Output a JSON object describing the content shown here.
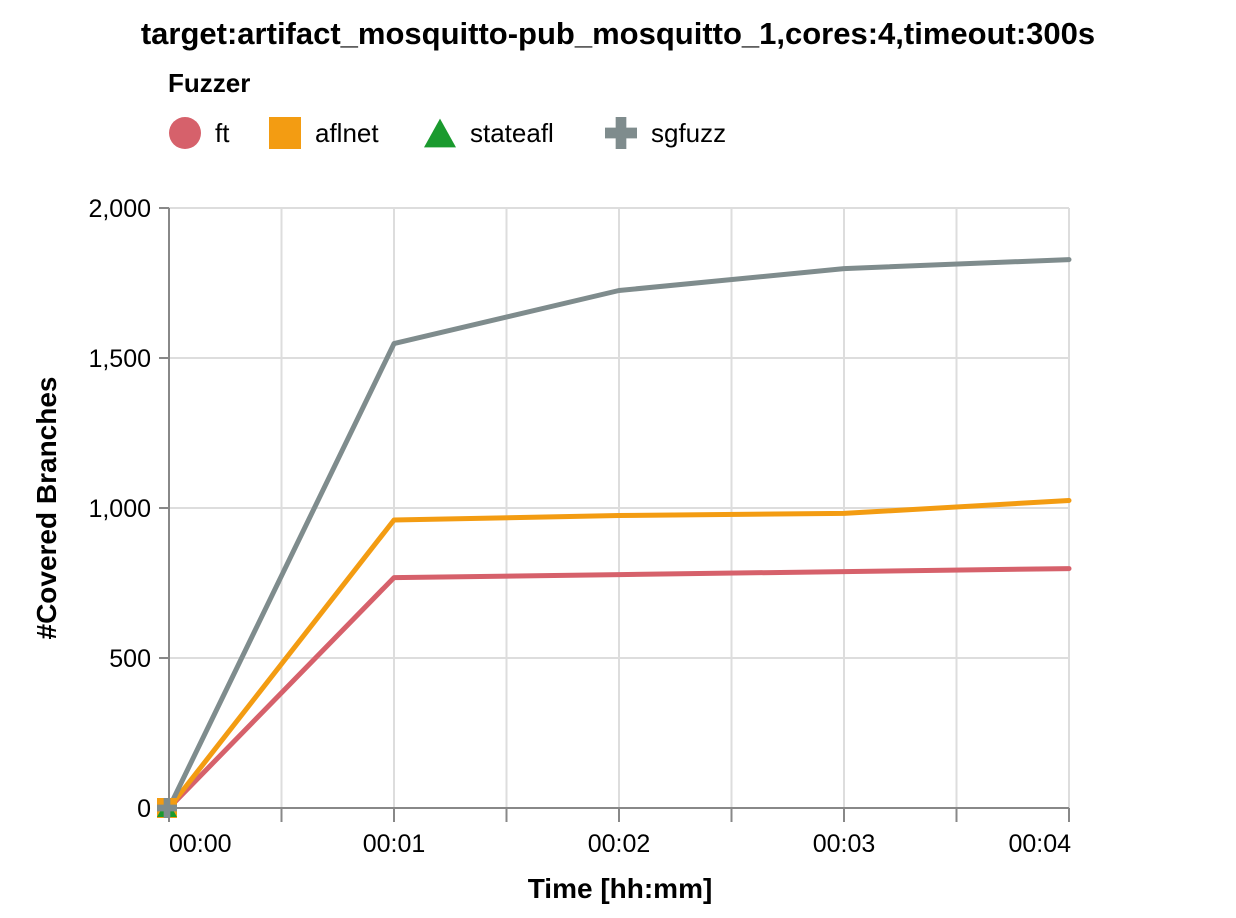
{
  "chart_data": {
    "type": "line",
    "title": "target:artifact_mosquitto-pub_mosquitto_1,cores:4,timeout:300s",
    "legend_title": "Fuzzer",
    "legend_position": "top-left",
    "xlabel": "Time [hh:mm]",
    "ylabel": "#Covered Branches",
    "xlim_minutes": [
      0,
      4
    ],
    "ylim": [
      0,
      2000
    ],
    "grid": true,
    "x_ticks": [
      "00:00",
      "00:01",
      "00:02",
      "00:03",
      "00:04"
    ],
    "y_ticks": [
      "0",
      "500",
      "1,000",
      "1,500",
      "2,000"
    ],
    "series": [
      {
        "name": "ft",
        "color": "#d6616b",
        "marker": "circle",
        "x": [
          "00:00",
          "00:01",
          "00:02",
          "00:03",
          "00:04"
        ],
        "y": [
          0,
          768,
          778,
          788,
          798
        ]
      },
      {
        "name": "aflnet",
        "color": "#f39c12",
        "marker": "square",
        "x": [
          "00:00",
          "00:01",
          "00:02",
          "00:03",
          "00:04"
        ],
        "y": [
          0,
          960,
          975,
          982,
          1025
        ]
      },
      {
        "name": "stateafl",
        "color": "#1a9a2e",
        "marker": "triangle",
        "x": [
          "00:00"
        ],
        "y": [
          0
        ]
      },
      {
        "name": "sgfuzz",
        "color": "#7f8c8d",
        "marker": "cross",
        "x": [
          "00:00",
          "00:01",
          "00:02",
          "00:03",
          "00:04"
        ],
        "y": [
          0,
          1548,
          1725,
          1798,
          1828
        ]
      }
    ]
  }
}
